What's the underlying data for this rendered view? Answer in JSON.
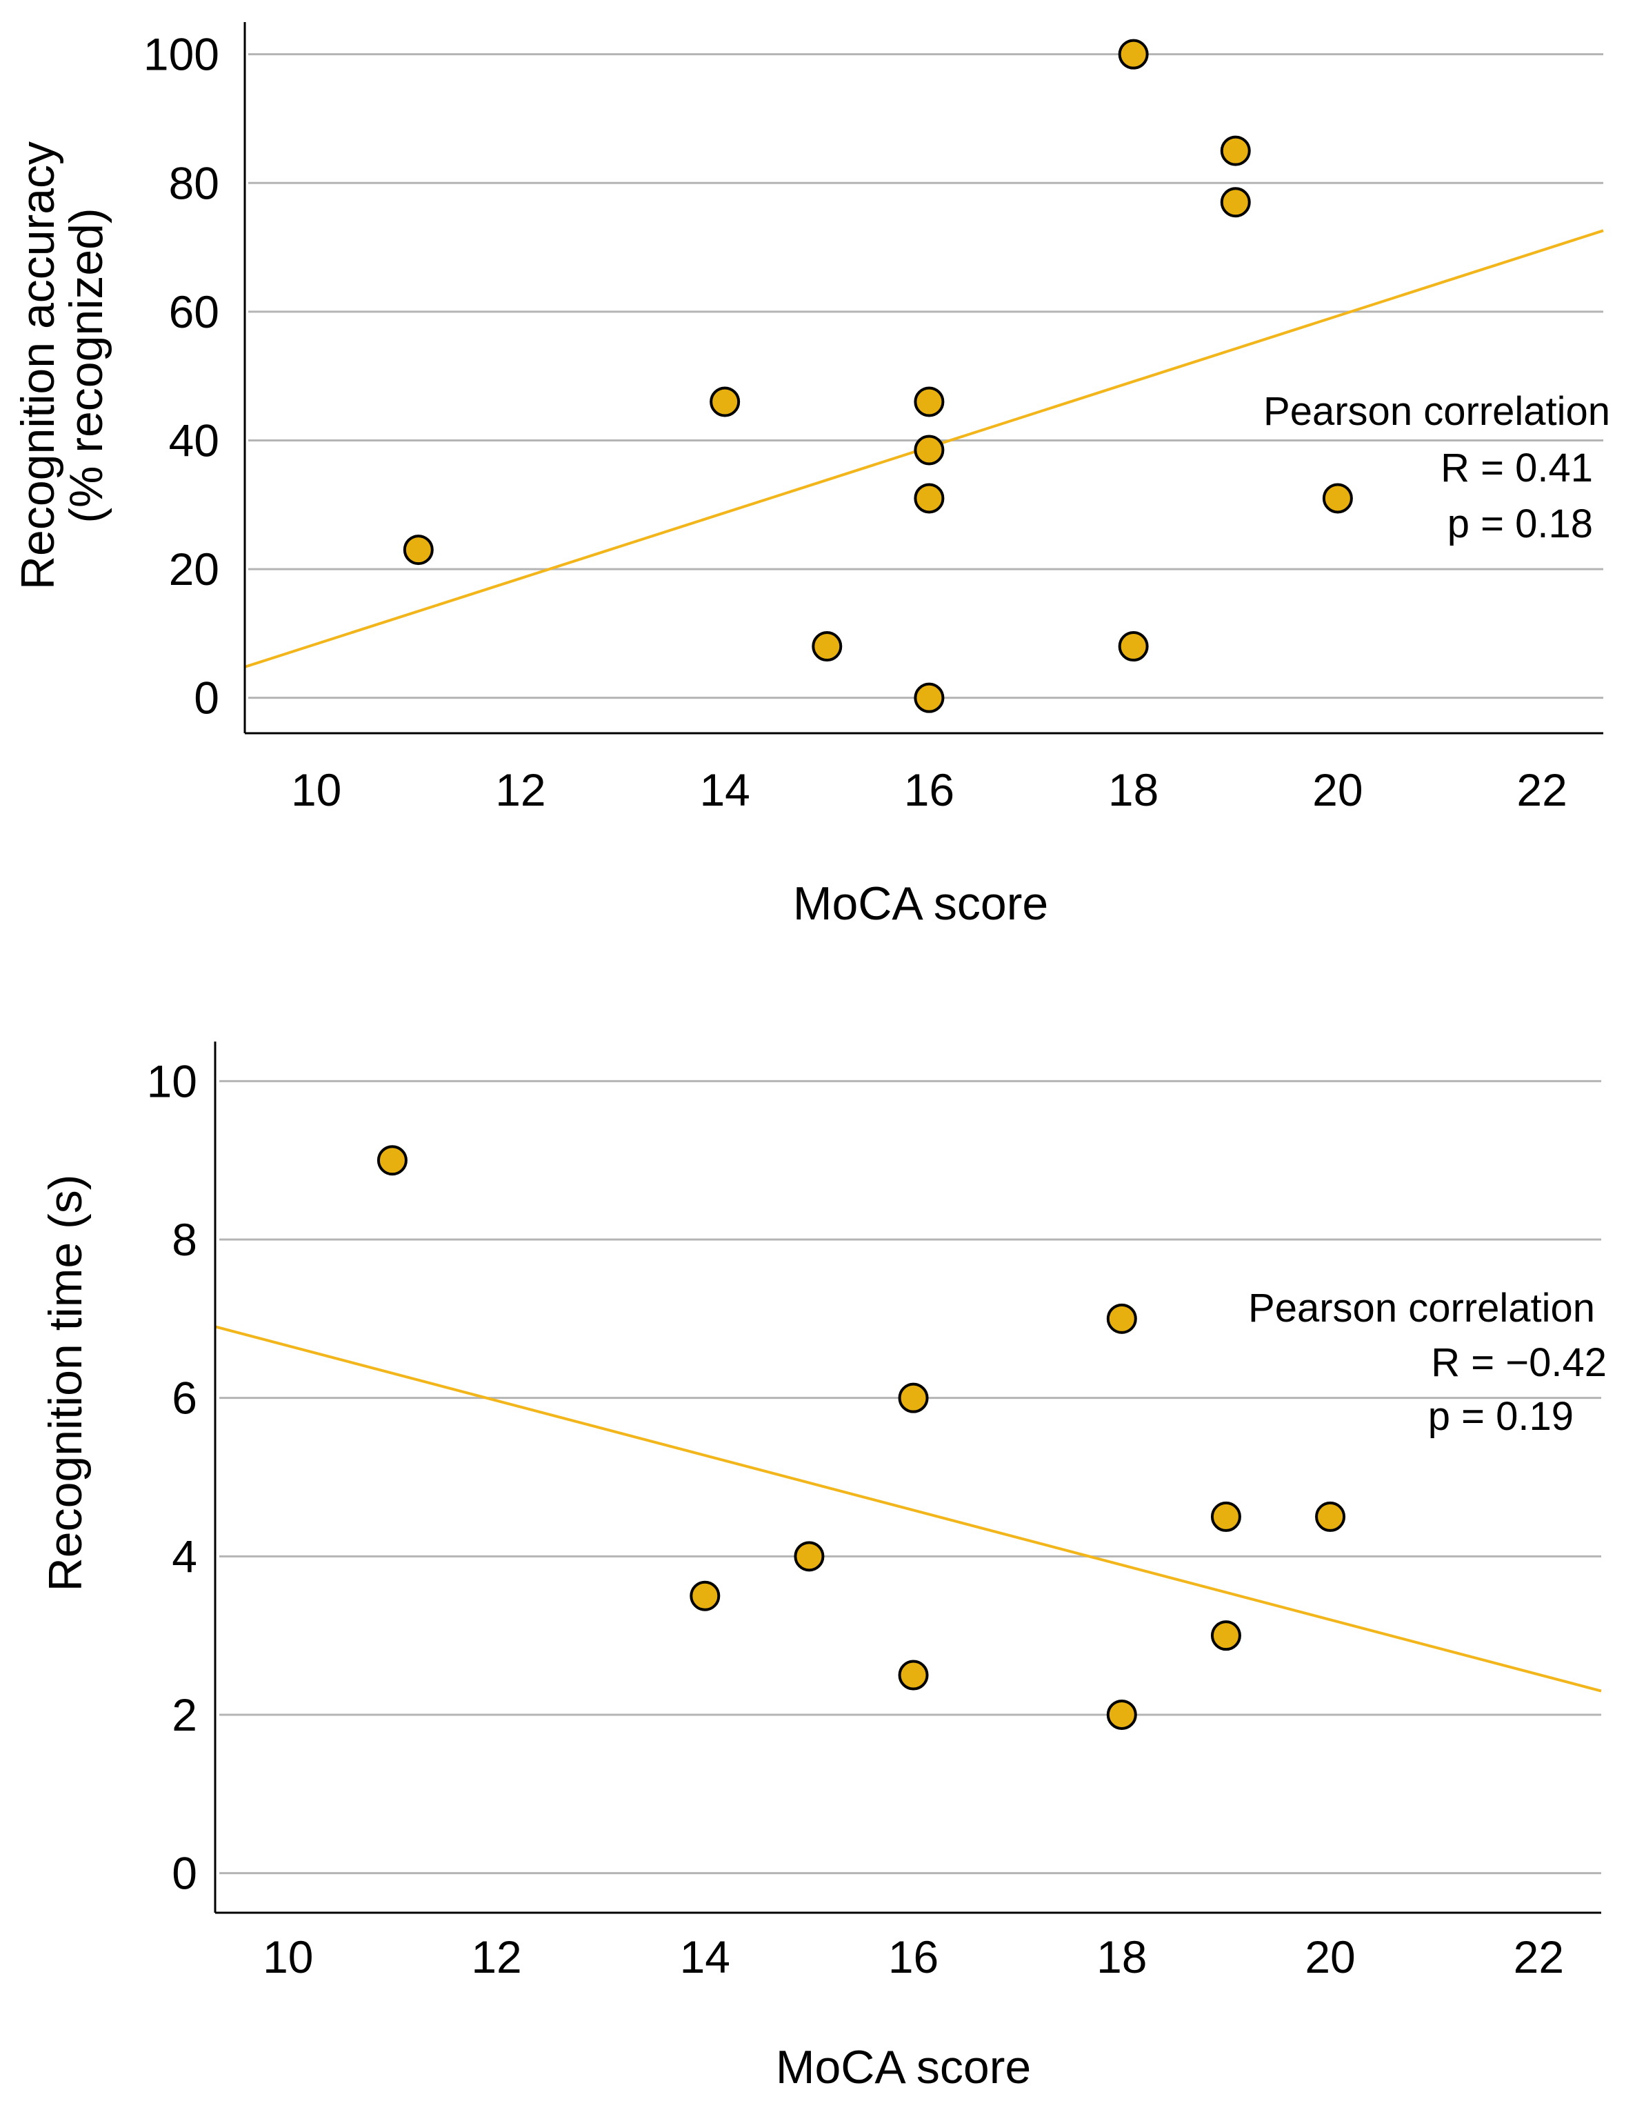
{
  "colors": {
    "point_fill": "#E8B00F",
    "point_stroke": "#000000",
    "line": "#F2B51A",
    "grid": "#b4b4b4",
    "axis": "#000000"
  },
  "chart_data": [
    {
      "type": "scatter",
      "title": "",
      "xlabel": "MoCA score",
      "ylabel_lines": [
        "Recognition accuracy",
        "(% recognized)"
      ],
      "xlim": [
        9.3,
        22.6
      ],
      "ylim": [
        -5.5,
        105
      ],
      "xticks": [
        10,
        12,
        14,
        16,
        18,
        20,
        22
      ],
      "yticks": [
        0,
        20,
        40,
        60,
        80,
        100
      ],
      "grid": "horizontal",
      "points": [
        {
          "x": 11,
          "y": 23
        },
        {
          "x": 14,
          "y": 46
        },
        {
          "x": 15,
          "y": 8
        },
        {
          "x": 16,
          "y": 46
        },
        {
          "x": 16,
          "y": 38.5
        },
        {
          "x": 16,
          "y": 31
        },
        {
          "x": 16,
          "y": 0
        },
        {
          "x": 18,
          "y": 100
        },
        {
          "x": 18,
          "y": 8
        },
        {
          "x": 19,
          "y": 85
        },
        {
          "x": 19,
          "y": 77
        },
        {
          "x": 20,
          "y": 31
        }
      ],
      "fit_line": {
        "x": [
          9.3,
          22.6
        ],
        "y": [
          4.8,
          72.6
        ]
      },
      "annotation": {
        "title": "Pearson correlation",
        "r": "R = 0.41",
        "p": "p = 0.18",
        "position": "right"
      }
    },
    {
      "type": "scatter",
      "title": "",
      "xlabel": "MoCA score",
      "ylabel_lines": [
        "Recognition time (s)"
      ],
      "xlim": [
        9.3,
        22.6
      ],
      "ylim": [
        -0.5,
        10.5
      ],
      "xticks": [
        10,
        12,
        14,
        16,
        18,
        20,
        22
      ],
      "yticks": [
        0,
        2,
        4,
        6,
        8,
        10
      ],
      "grid": "horizontal",
      "points": [
        {
          "x": 11,
          "y": 9
        },
        {
          "x": 14,
          "y": 3.5
        },
        {
          "x": 15,
          "y": 4
        },
        {
          "x": 16,
          "y": 6
        },
        {
          "x": 16,
          "y": 2.5
        },
        {
          "x": 18,
          "y": 7
        },
        {
          "x": 18,
          "y": 2
        },
        {
          "x": 19,
          "y": 4.5
        },
        {
          "x": 19,
          "y": 3
        },
        {
          "x": 20,
          "y": 4.5
        }
      ],
      "fit_line": {
        "x": [
          9.3,
          22.6
        ],
        "y": [
          6.9,
          2.3
        ]
      },
      "annotation": {
        "title": "Pearson correlation",
        "r": "R = −0.42",
        "p": "p = 0.19",
        "position": "right"
      }
    }
  ]
}
